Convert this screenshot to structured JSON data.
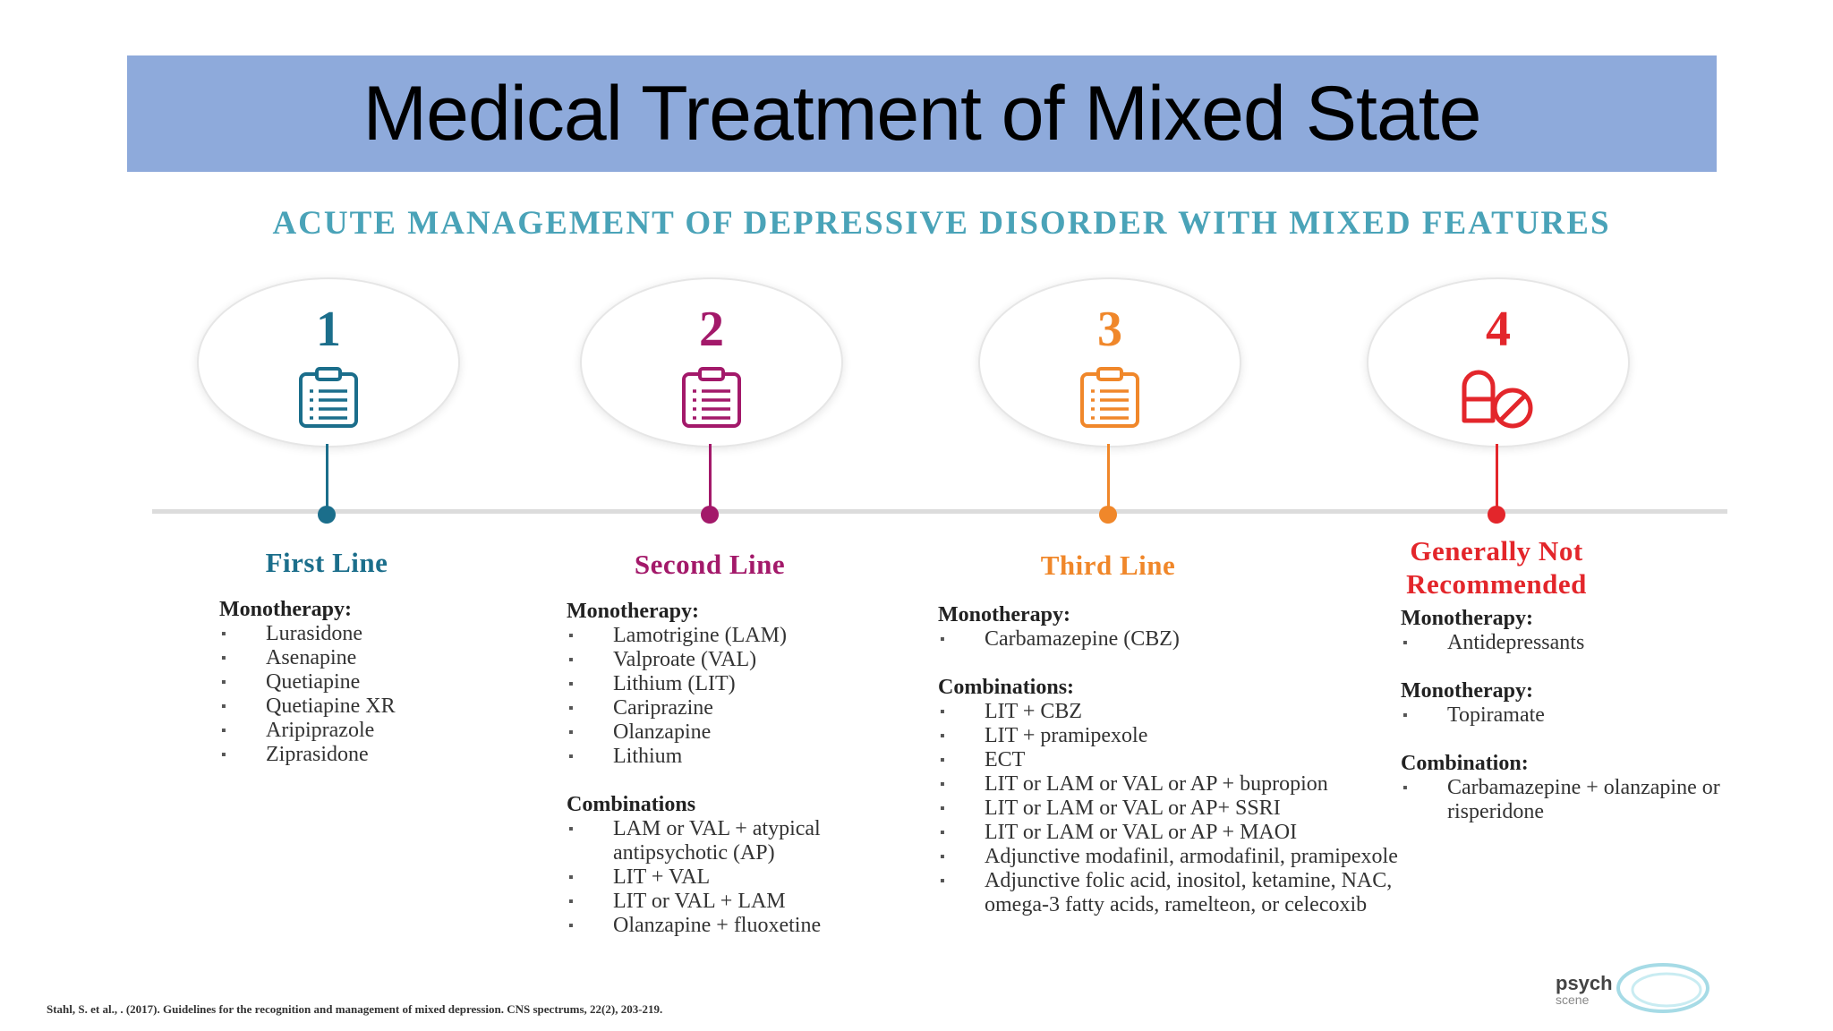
{
  "slide": {
    "title": "Medical Treatment of Mixed State",
    "subtitle": "ACUTE MANAGEMENT OF DEPRESSIVE DISORDER WITH MIXED FEATURES",
    "citation": "Stahl, S. et al., . (2017). Guidelines for the recognition and management of mixed depression. CNS spectrums, 22(2), 203-219.",
    "logo_line1": "psych",
    "logo_line2": "scene"
  },
  "stages": [
    {
      "number": "1",
      "label": "First Line",
      "color": "#1b6e8b",
      "icon": "clipboard-icon",
      "groups": [
        {
          "heading": "Monotherapy:",
          "items": [
            "Lurasidone",
            "Asenapine",
            "Quetiapine",
            "Quetiapine XR",
            "Aripiprazole",
            "Ziprasidone"
          ]
        }
      ]
    },
    {
      "number": "2",
      "label": "Second Line",
      "color": "#a3196a",
      "icon": "clipboard-icon",
      "groups": [
        {
          "heading": "Monotherapy:",
          "items": [
            "Lamotrigine (LAM)",
            "Valproate (VAL)",
            "Lithium (LIT)",
            "Cariprazine",
            "Olanzapine",
            "Lithium"
          ]
        },
        {
          "heading": "Combinations",
          "items": [
            "LAM or VAL + atypical antipsychotic (AP)",
            "LIT + VAL",
            "LIT or VAL + LAM",
            "Olanzapine + fluoxetine"
          ]
        }
      ]
    },
    {
      "number": "3",
      "label": "Third Line",
      "color": "#f0872a",
      "icon": "clipboard-icon",
      "groups": [
        {
          "heading": "Monotherapy:",
          "items": [
            "Carbamazepine (CBZ)"
          ]
        },
        {
          "heading": "Combinations:",
          "items": [
            "LIT + CBZ",
            "LIT + pramipexole",
            "ECT",
            "LIT or LAM or VAL or AP + bupropion",
            "LIT or LAM or VAL or AP+ SSRI",
            "LIT or LAM or VAL or AP + MAOI",
            "Adjunctive modafinil, armodafinil, pramipexole",
            "Adjunctive folic acid, inositol, ketamine, NAC, omega-3 fatty acids, ramelteon, or celecoxib"
          ]
        }
      ]
    },
    {
      "number": "4",
      "label": "Generally Not Recommended",
      "color": "#e3262b",
      "icon": "pill-prohibited-icon",
      "groups": [
        {
          "heading": "Monotherapy:",
          "items": [
            "Antidepressants"
          ]
        },
        {
          "heading": "Monotherapy:",
          "items": [
            "Topiramate"
          ]
        },
        {
          "heading": "Combination:",
          "items": [
            "Carbamazepine + olanzapine or risperidone"
          ]
        }
      ]
    }
  ]
}
